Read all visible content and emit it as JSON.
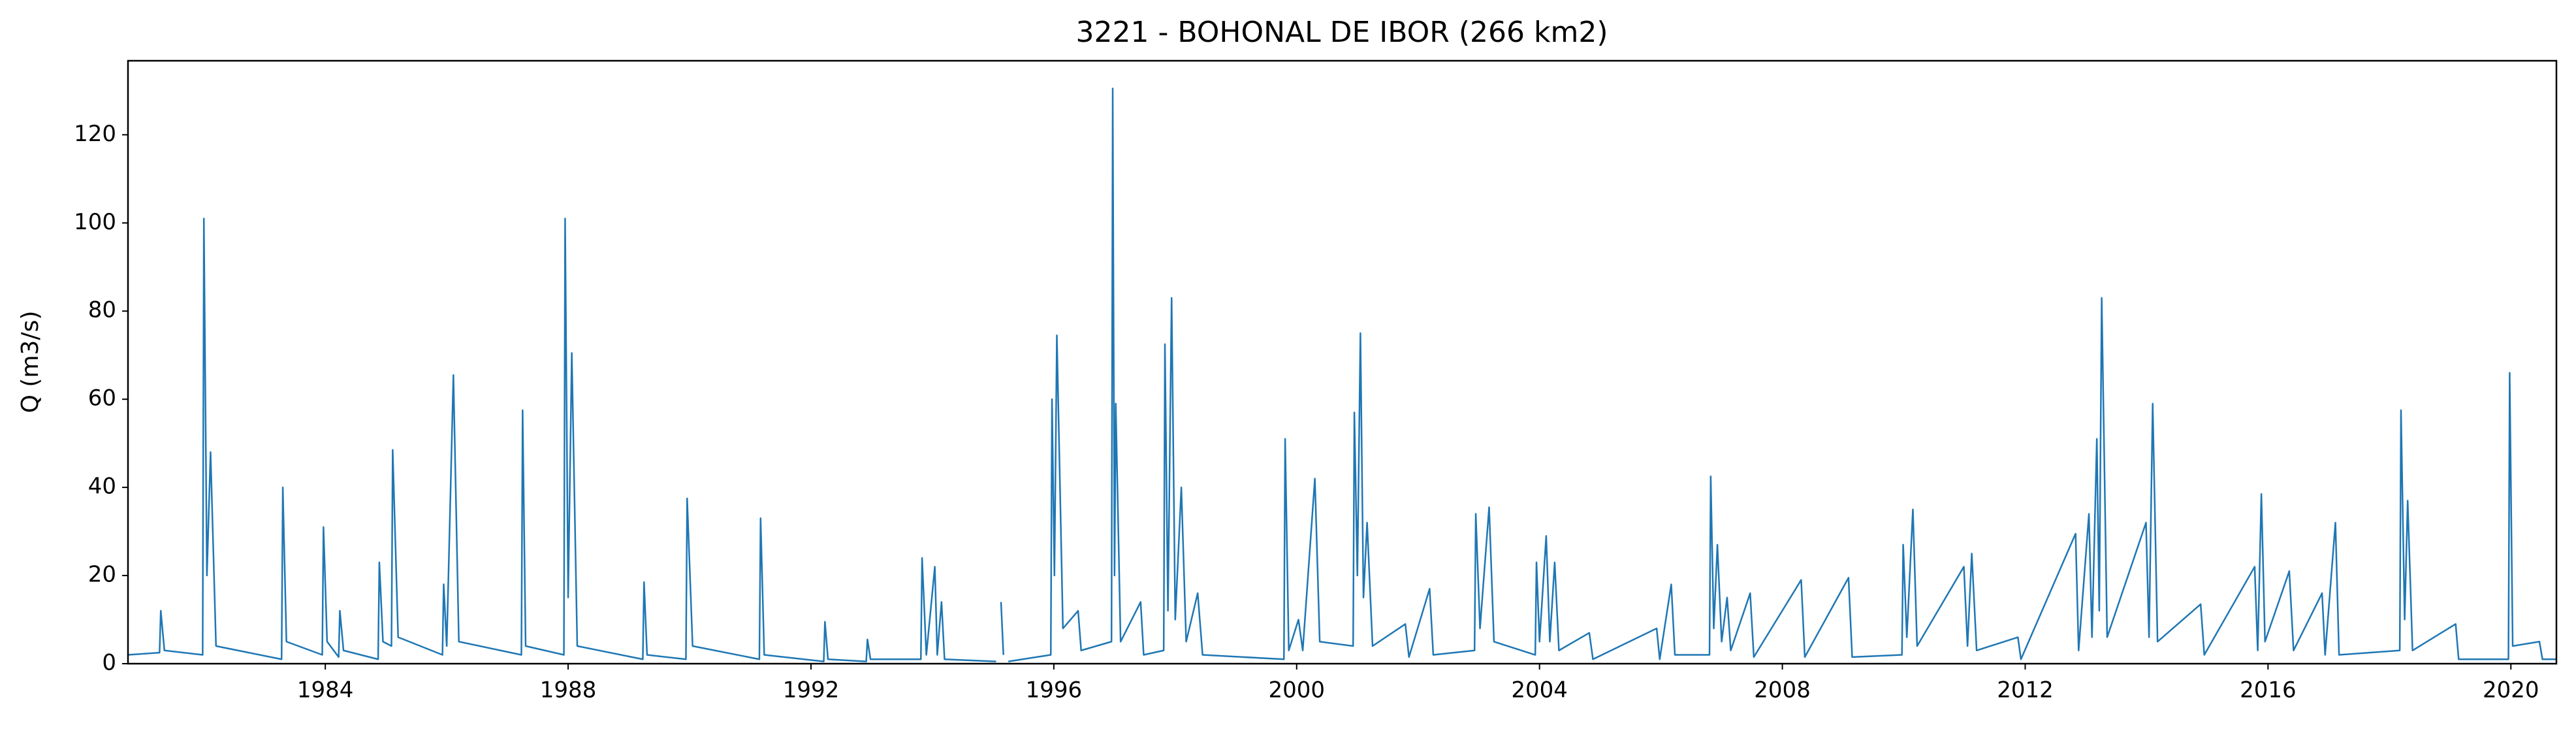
{
  "chart_data": {
    "type": "line",
    "title": "3221 - BOHONAL DE IBOR (266 km2)",
    "y_label": "Q (m3/s)",
    "xlim": [
      1980.75,
      2020.75
    ],
    "ylim": [
      0,
      136.8
    ],
    "xticks": [
      1984,
      1988,
      1992,
      1996,
      2000,
      2004,
      2008,
      2012,
      2016,
      2020
    ],
    "yticks": [
      0,
      20,
      40,
      60,
      80,
      100,
      120
    ],
    "grid": false,
    "series": [
      {
        "name": "Q",
        "color": "#1f77b4",
        "x": [
          1980.75,
          1981.27,
          1981.29,
          1981.35,
          1981.98,
          1982.0,
          1982.05,
          1982.11,
          1982.2,
          1983.28,
          1983.3,
          1983.36,
          1983.95,
          1983.97,
          1984.03,
          1984.22,
          1984.24,
          1984.3,
          1984.87,
          1984.89,
          1984.95,
          1985.09,
          1985.11,
          1985.2,
          1985.93,
          1985.95,
          1986.0,
          1986.11,
          1986.2,
          1987.23,
          1987.25,
          1987.3,
          1987.93,
          1987.95,
          1988.0,
          1988.06,
          1988.15,
          1989.23,
          1989.25,
          1989.3,
          1989.94,
          1989.96,
          1990.05,
          1991.15,
          1991.17,
          1991.23,
          1992.21,
          1992.23,
          1992.28,
          1992.91,
          1992.93,
          1992.98,
          1993.81,
          1993.83,
          1993.9,
          1994.04,
          1994.08,
          1994.15,
          1994.2,
          1995.05,
          1995.1,
          1995.13,
          1995.17,
          1995.2,
          1995.25,
          1995.95,
          1995.97,
          1996.01,
          1996.05,
          1996.15,
          1996.4,
          1996.45,
          1996.95,
          1996.97,
          1997.0,
          1997.02,
          1997.1,
          1997.43,
          1997.48,
          1997.81,
          1997.83,
          1997.88,
          1997.94,
          1998.0,
          1998.1,
          1998.18,
          1998.37,
          1998.45,
          1999.79,
          1999.81,
          1999.87,
          2000.03,
          2000.1,
          2000.3,
          2000.38,
          2000.93,
          2000.95,
          2001.0,
          2001.05,
          2001.1,
          2001.16,
          2001.25,
          2001.79,
          2001.85,
          2002.19,
          2002.25,
          2002.93,
          2002.95,
          2003.02,
          2003.17,
          2003.25,
          2003.93,
          2003.95,
          2004.0,
          2004.11,
          2004.17,
          2004.25,
          2004.32,
          2004.82,
          2004.88,
          2005.93,
          2005.98,
          2006.17,
          2006.23,
          2006.8,
          2006.82,
          2006.87,
          2006.93,
          2007.0,
          2007.09,
          2007.15,
          2007.47,
          2007.53,
          2008.31,
          2008.37,
          2009.09,
          2009.15,
          2009.97,
          2009.99,
          2010.05,
          2010.15,
          2010.22,
          2010.99,
          2011.05,
          2011.12,
          2011.2,
          2011.88,
          2011.93,
          2012.83,
          2012.88,
          2013.05,
          2013.1,
          2013.18,
          2013.22,
          2013.26,
          2013.35,
          2013.99,
          2014.04,
          2014.1,
          2014.18,
          2014.89,
          2014.95,
          2015.78,
          2015.83,
          2015.89,
          2015.95,
          2016.35,
          2016.42,
          2016.89,
          2016.94,
          2017.11,
          2017.17,
          2018.17,
          2018.19,
          2018.25,
          2018.3,
          2018.38,
          2019.09,
          2019.14,
          2019.96,
          2019.98,
          2020.03,
          2020.47,
          2020.52,
          2020.75
        ],
        "values": [
          2,
          2.5,
          12,
          3,
          2,
          101,
          20,
          48,
          4,
          1,
          40,
          5,
          2,
          31,
          5,
          1.5,
          12,
          3,
          1,
          23,
          5,
          4,
          48.5,
          6,
          2,
          18,
          4,
          65.5,
          5,
          2,
          57.5,
          4,
          2,
          101,
          15,
          70.5,
          4,
          1,
          18.5,
          2,
          1,
          37.5,
          4,
          1,
          33,
          2,
          0.5,
          9.5,
          1,
          0.5,
          5.5,
          1,
          1,
          24,
          2,
          22,
          2,
          14,
          1,
          0.5,
          null,
          14,
          2,
          null,
          0.5,
          2,
          60,
          20,
          74.5,
          8,
          12,
          3,
          5,
          130.5,
          20,
          59,
          5,
          14,
          2,
          3,
          72.5,
          12,
          83,
          10,
          40,
          5,
          16,
          2,
          1,
          51,
          3,
          10,
          3,
          42,
          5,
          4,
          57,
          20,
          75,
          15,
          32,
          4,
          9,
          1.5,
          17,
          2,
          3,
          34,
          8,
          35.5,
          5,
          2,
          23,
          5,
          29,
          5,
          23,
          3,
          7,
          1,
          8,
          1,
          18,
          2,
          2,
          42.5,
          8,
          27,
          5,
          15,
          3,
          16,
          1.5,
          19,
          1.5,
          19.5,
          1.5,
          2,
          27,
          6,
          35,
          4,
          22,
          4,
          25,
          3,
          6,
          1,
          29.5,
          3,
          34,
          6,
          51,
          12,
          83,
          6,
          32,
          6,
          59,
          5,
          13.5,
          2,
          22,
          3,
          38.5,
          5,
          21,
          3,
          16,
          2,
          32,
          2,
          3,
          57.5,
          10,
          37,
          3,
          9,
          1,
          1,
          66,
          4,
          5,
          1,
          1
        ]
      }
    ]
  }
}
